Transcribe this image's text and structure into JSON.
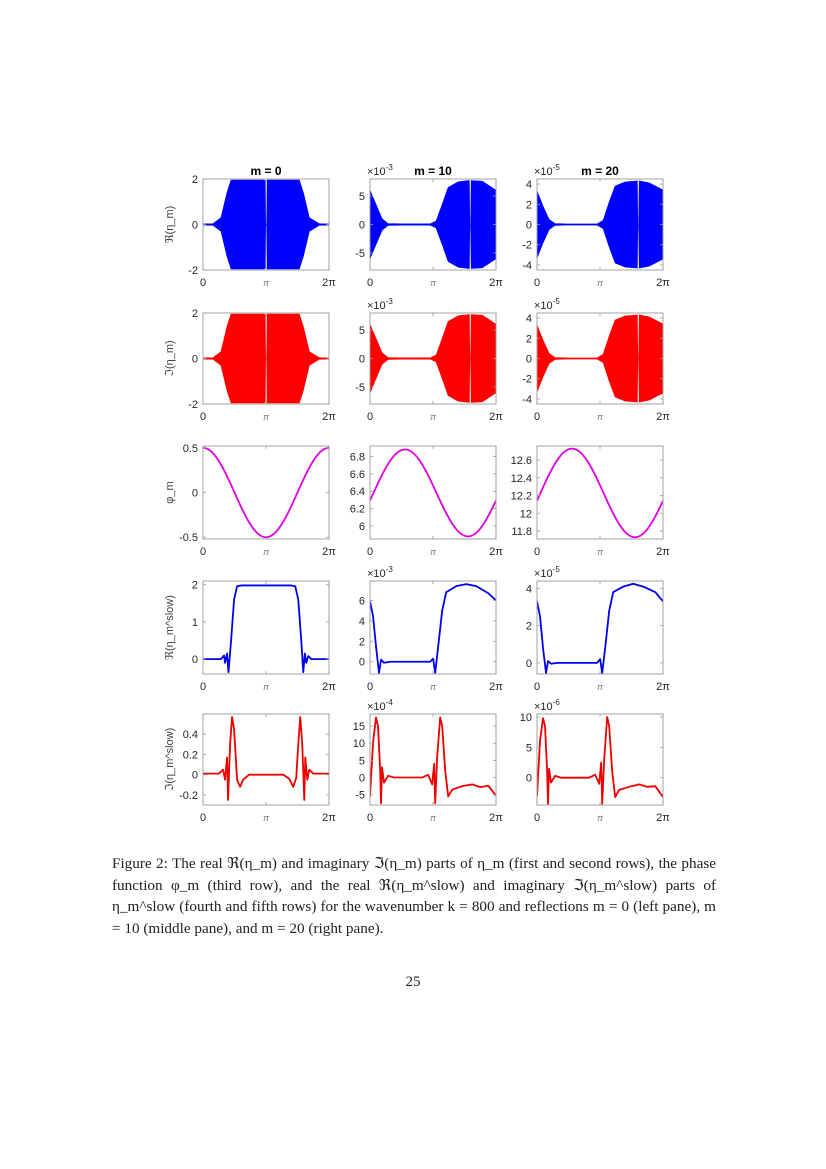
{
  "figure": {
    "column_titles": [
      "m = 0",
      "m = 10",
      "m = 20"
    ],
    "row_ylabels": [
      "ℜ(η_m)",
      "ℑ(η_m)",
      "φ_m",
      "ℜ(η_m^slow)",
      "ℑ(η_m^slow)"
    ],
    "xtick_labels": [
      "0",
      "π",
      "2π"
    ]
  },
  "chart_data": [
    {
      "row": 1,
      "col": 1,
      "type": "area",
      "series_color": "#0000FF",
      "title": "m = 0",
      "ylabel": "ℜ(η_m)",
      "exponent": "",
      "xlim": [
        0,
        6.283
      ],
      "ylim": [
        -2,
        2
      ],
      "yticks": [
        -2,
        0,
        2
      ],
      "xticks": [
        "0",
        "π",
        "2π"
      ],
      "kind": "envelope",
      "envelope": [
        [
          0,
          0.02
        ],
        [
          0.5,
          0.03
        ],
        [
          0.9,
          0.3
        ],
        [
          1.2,
          1.4
        ],
        [
          1.4,
          1.95
        ],
        [
          3.05,
          1.95
        ],
        [
          3.1,
          1.9
        ],
        [
          3.12,
          0
        ],
        [
          3.18,
          0
        ],
        [
          3.2,
          1.95
        ],
        [
          4.8,
          1.95
        ],
        [
          5.0,
          1.4
        ],
        [
          5.3,
          0.3
        ],
        [
          5.8,
          0.03
        ],
        [
          6.283,
          0.02
        ]
      ]
    },
    {
      "row": 1,
      "col": 2,
      "type": "area",
      "series_color": "#0000FF",
      "title": "m = 10",
      "ylabel": "",
      "exponent": "×10^-3",
      "xlim": [
        0,
        6.283
      ],
      "ylim": [
        -8,
        8
      ],
      "yticks": [
        -5,
        0,
        5
      ],
      "xticks": [
        "0",
        "π",
        "2π"
      ],
      "kind": "envelope",
      "envelope": [
        [
          0,
          6
        ],
        [
          0.3,
          3.5
        ],
        [
          0.6,
          1
        ],
        [
          0.9,
          0.15
        ],
        [
          1.5,
          0.1
        ],
        [
          3.0,
          0.1
        ],
        [
          3.3,
          0.6
        ],
        [
          3.6,
          3.5
        ],
        [
          3.9,
          6.5
        ],
        [
          4.4,
          7.5
        ],
        [
          4.9,
          7.7
        ],
        [
          4.95,
          7.7
        ],
        [
          4.97,
          0
        ],
        [
          5.02,
          0
        ],
        [
          5.05,
          7.7
        ],
        [
          5.6,
          7.6
        ],
        [
          6.283,
          6
        ]
      ]
    },
    {
      "row": 1,
      "col": 3,
      "type": "area",
      "series_color": "#0000FF",
      "title": "m = 20",
      "ylabel": "",
      "exponent": "×10^-5",
      "xlim": [
        0,
        6.283
      ],
      "ylim": [
        -4.5,
        4.5
      ],
      "yticks": [
        -4,
        -2,
        0,
        2,
        4
      ],
      "xticks": [
        "0",
        "π",
        "2π"
      ],
      "kind": "envelope",
      "envelope": [
        [
          0,
          3.3
        ],
        [
          0.3,
          1.8
        ],
        [
          0.6,
          0.5
        ],
        [
          0.9,
          0.08
        ],
        [
          1.5,
          0.05
        ],
        [
          3.0,
          0.05
        ],
        [
          3.3,
          0.4
        ],
        [
          3.6,
          2.2
        ],
        [
          3.9,
          3.8
        ],
        [
          4.4,
          4.2
        ],
        [
          5.0,
          4.3
        ],
        [
          5.02,
          0
        ],
        [
          5.07,
          0
        ],
        [
          5.1,
          4.3
        ],
        [
          5.6,
          4.1
        ],
        [
          6.283,
          3.4
        ]
      ]
    },
    {
      "row": 2,
      "col": 1,
      "type": "area",
      "series_color": "#FF0000",
      "title": "",
      "ylabel": "ℑ(η_m)",
      "exponent": "",
      "xlim": [
        0,
        6.283
      ],
      "ylim": [
        -2,
        2
      ],
      "yticks": [
        -2,
        0,
        2
      ],
      "xticks": [
        "0",
        "π",
        "2π"
      ],
      "kind": "envelope",
      "envelope": [
        [
          0,
          0.02
        ],
        [
          0.5,
          0.03
        ],
        [
          0.9,
          0.3
        ],
        [
          1.2,
          1.4
        ],
        [
          1.4,
          1.95
        ],
        [
          3.05,
          1.95
        ],
        [
          3.1,
          1.9
        ],
        [
          3.12,
          0
        ],
        [
          3.18,
          0
        ],
        [
          3.2,
          1.95
        ],
        [
          4.8,
          1.95
        ],
        [
          5.0,
          1.4
        ],
        [
          5.3,
          0.3
        ],
        [
          5.8,
          0.03
        ],
        [
          6.283,
          0.02
        ]
      ]
    },
    {
      "row": 2,
      "col": 2,
      "type": "area",
      "series_color": "#FF0000",
      "title": "",
      "ylabel": "",
      "exponent": "×10^-3",
      "xlim": [
        0,
        6.283
      ],
      "ylim": [
        -8,
        8
      ],
      "yticks": [
        -5,
        0,
        5
      ],
      "xticks": [
        "0",
        "π",
        "2π"
      ],
      "kind": "envelope",
      "envelope": [
        [
          0,
          6
        ],
        [
          0.3,
          3.5
        ],
        [
          0.6,
          1
        ],
        [
          0.9,
          0.15
        ],
        [
          1.5,
          0.1
        ],
        [
          3.0,
          0.1
        ],
        [
          3.3,
          0.6
        ],
        [
          3.6,
          3.5
        ],
        [
          3.9,
          6.5
        ],
        [
          4.4,
          7.5
        ],
        [
          4.95,
          7.7
        ],
        [
          4.97,
          0
        ],
        [
          5.02,
          0
        ],
        [
          5.05,
          7.7
        ],
        [
          5.6,
          7.6
        ],
        [
          6.283,
          6
        ]
      ]
    },
    {
      "row": 2,
      "col": 3,
      "type": "area",
      "series_color": "#FF0000",
      "title": "",
      "ylabel": "",
      "exponent": "×10^-5",
      "xlim": [
        0,
        6.283
      ],
      "ylim": [
        -4.5,
        4.5
      ],
      "yticks": [
        -4,
        -2,
        0,
        2,
        4
      ],
      "xticks": [
        "0",
        "π",
        "2π"
      ],
      "kind": "envelope",
      "envelope": [
        [
          0,
          3.3
        ],
        [
          0.3,
          1.8
        ],
        [
          0.6,
          0.5
        ],
        [
          0.9,
          0.08
        ],
        [
          1.5,
          0.05
        ],
        [
          3.0,
          0.05
        ],
        [
          3.3,
          0.4
        ],
        [
          3.6,
          2.2
        ],
        [
          3.9,
          3.8
        ],
        [
          4.4,
          4.2
        ],
        [
          5.0,
          4.3
        ],
        [
          5.02,
          0
        ],
        [
          5.07,
          0
        ],
        [
          5.1,
          4.3
        ],
        [
          5.6,
          4.1
        ],
        [
          6.283,
          3.4
        ]
      ]
    },
    {
      "row": 3,
      "col": 1,
      "type": "line",
      "series_color": "#E000E0",
      "title": "",
      "ylabel": "φ_m",
      "exponent": "",
      "xlim": [
        0,
        6.283
      ],
      "ylim": [
        -0.52,
        0.52
      ],
      "yticks": [
        -0.5,
        0,
        0.5
      ],
      "xticks": [
        "0",
        "π",
        "2π"
      ],
      "kind": "sine",
      "sine": {
        "offset": 0,
        "amp": 0.5,
        "phase_deg": 90
      }
    },
    {
      "row": 3,
      "col": 2,
      "type": "line",
      "series_color": "#E000E0",
      "title": "",
      "ylabel": "",
      "exponent": "",
      "xlim": [
        0,
        6.283
      ],
      "ylim": [
        5.85,
        6.92
      ],
      "yticks": [
        6,
        6.2,
        6.4,
        6.6,
        6.8
      ],
      "xticks": [
        "0",
        "π",
        "2π"
      ],
      "kind": "sine",
      "sine": {
        "offset": 6.38,
        "amp": 0.5,
        "phase_deg": -10
      }
    },
    {
      "row": 3,
      "col": 3,
      "type": "line",
      "series_color": "#E000E0",
      "title": "",
      "ylabel": "",
      "exponent": "",
      "xlim": [
        0,
        6.283
      ],
      "ylim": [
        11.71,
        12.76
      ],
      "yticks": [
        11.8,
        12,
        12.2,
        12.4,
        12.6
      ],
      "xticks": [
        "0",
        "π",
        "2π"
      ],
      "kind": "sine",
      "sine": {
        "offset": 12.23,
        "amp": 0.5,
        "phase_deg": -10
      }
    },
    {
      "row": 4,
      "col": 1,
      "type": "line",
      "series_color": "#0000EE",
      "title": "",
      "ylabel": "ℜ(η_m^slow)",
      "exponent": "",
      "xlim": [
        0,
        6.283
      ],
      "ylim": [
        -0.4,
        2.1
      ],
      "yticks": [
        0,
        1,
        2
      ],
      "xticks": [
        "0",
        "π",
        "2π"
      ],
      "kind": "line",
      "points": [
        [
          0,
          0
        ],
        [
          0.9,
          0
        ],
        [
          1.05,
          0.1
        ],
        [
          1.1,
          -0.1
        ],
        [
          1.2,
          0.15
        ],
        [
          1.27,
          -0.35
        ],
        [
          1.4,
          0.5
        ],
        [
          1.55,
          1.6
        ],
        [
          1.7,
          1.96
        ],
        [
          1.9,
          1.98
        ],
        [
          4.4,
          1.98
        ],
        [
          4.6,
          1.96
        ],
        [
          4.75,
          1.6
        ],
        [
          4.9,
          0.5
        ],
        [
          5.0,
          -0.35
        ],
        [
          5.08,
          0.15
        ],
        [
          5.15,
          -0.1
        ],
        [
          5.25,
          0.08
        ],
        [
          5.4,
          0
        ],
        [
          6.283,
          0
        ]
      ]
    },
    {
      "row": 4,
      "col": 2,
      "type": "line",
      "series_color": "#0000EE",
      "title": "",
      "ylabel": "",
      "exponent": "×10^-3",
      "xlim": [
        0,
        6.283
      ],
      "ylim": [
        -1.2,
        7.9
      ],
      "yticks": [
        0,
        2,
        4,
        6
      ],
      "xticks": [
        "0",
        "π",
        "2π"
      ],
      "kind": "line",
      "points": [
        [
          0,
          5.9
        ],
        [
          0.15,
          4.5
        ],
        [
          0.3,
          1.5
        ],
        [
          0.45,
          -1.1
        ],
        [
          0.55,
          0.2
        ],
        [
          0.7,
          -0.1
        ],
        [
          1.0,
          0
        ],
        [
          3.0,
          0
        ],
        [
          3.15,
          0.3
        ],
        [
          3.25,
          -1.1
        ],
        [
          3.4,
          1.5
        ],
        [
          3.6,
          5
        ],
        [
          3.8,
          6.8
        ],
        [
          4.3,
          7.4
        ],
        [
          4.8,
          7.6
        ],
        [
          5.3,
          7.4
        ],
        [
          5.9,
          6.7
        ],
        [
          6.283,
          6
        ]
      ]
    },
    {
      "row": 4,
      "col": 3,
      "type": "line",
      "series_color": "#0000EE",
      "title": "",
      "ylabel": "",
      "exponent": "×10^-5",
      "xlim": [
        0,
        6.283
      ],
      "ylim": [
        -0.6,
        4.4
      ],
      "yticks": [
        0,
        2,
        4
      ],
      "xticks": [
        "0",
        "π",
        "2π"
      ],
      "kind": "line",
      "points": [
        [
          0,
          3.3
        ],
        [
          0.15,
          2.5
        ],
        [
          0.3,
          0.8
        ],
        [
          0.45,
          -0.55
        ],
        [
          0.55,
          0.1
        ],
        [
          0.7,
          -0.05
        ],
        [
          1.0,
          0
        ],
        [
          3.0,
          0
        ],
        [
          3.15,
          0.2
        ],
        [
          3.25,
          -0.55
        ],
        [
          3.4,
          0.8
        ],
        [
          3.6,
          2.8
        ],
        [
          3.8,
          3.8
        ],
        [
          4.3,
          4.1
        ],
        [
          4.8,
          4.25
        ],
        [
          5.3,
          4.1
        ],
        [
          5.9,
          3.8
        ],
        [
          6.283,
          3.3
        ]
      ]
    },
    {
      "row": 5,
      "col": 1,
      "type": "line",
      "series_color": "#EE0000",
      "title": "",
      "ylabel": "ℑ(η_m^slow)",
      "exponent": "",
      "xlim": [
        0,
        6.283
      ],
      "ylim": [
        -0.3,
        0.6
      ],
      "yticks": [
        -0.2,
        0,
        0.2,
        0.4
      ],
      "xticks": [
        "0",
        "π",
        "2π"
      ],
      "kind": "line",
      "points": [
        [
          0,
          0.01
        ],
        [
          0.8,
          0.01
        ],
        [
          1.0,
          0.05
        ],
        [
          1.1,
          -0.05
        ],
        [
          1.2,
          0.17
        ],
        [
          1.25,
          -0.25
        ],
        [
          1.35,
          0.3
        ],
        [
          1.45,
          0.57
        ],
        [
          1.55,
          0.45
        ],
        [
          1.7,
          -0.05
        ],
        [
          1.85,
          -0.12
        ],
        [
          2.0,
          -0.05
        ],
        [
          2.3,
          0
        ],
        [
          4.0,
          0
        ],
        [
          4.3,
          -0.04
        ],
        [
          4.5,
          -0.12
        ],
        [
          4.65,
          -0.03
        ],
        [
          4.75,
          0.3
        ],
        [
          4.85,
          0.57
        ],
        [
          4.95,
          0.3
        ],
        [
          5.05,
          -0.25
        ],
        [
          5.1,
          0.17
        ],
        [
          5.2,
          -0.05
        ],
        [
          5.3,
          0.05
        ],
        [
          5.5,
          0.01
        ],
        [
          6.283,
          0.01
        ]
      ]
    },
    {
      "row": 5,
      "col": 2,
      "type": "line",
      "series_color": "#EE0000",
      "title": "",
      "ylabel": "",
      "exponent": "×10^-4",
      "xlim": [
        0,
        6.283
      ],
      "ylim": [
        -8,
        18.5
      ],
      "yticks": [
        -5,
        0,
        5,
        10,
        15
      ],
      "xticks": [
        "0",
        "π",
        "2π"
      ],
      "kind": "line",
      "points": [
        [
          0,
          -5.5
        ],
        [
          0.15,
          10
        ],
        [
          0.3,
          17.5
        ],
        [
          0.4,
          15
        ],
        [
          0.5,
          3
        ],
        [
          0.55,
          -7.5
        ],
        [
          0.6,
          3
        ],
        [
          0.7,
          -1.5
        ],
        [
          0.9,
          0.5
        ],
        [
          1.2,
          0
        ],
        [
          2.6,
          0
        ],
        [
          2.9,
          0.8
        ],
        [
          3.1,
          -2
        ],
        [
          3.2,
          4
        ],
        [
          3.25,
          -7.5
        ],
        [
          3.35,
          6
        ],
        [
          3.5,
          17.5
        ],
        [
          3.6,
          15
        ],
        [
          3.75,
          2
        ],
        [
          3.9,
          -5.5
        ],
        [
          4.1,
          -3.5
        ],
        [
          4.6,
          -2.5
        ],
        [
          5.1,
          -2
        ],
        [
          5.5,
          -2.8
        ],
        [
          5.9,
          -2.4
        ],
        [
          6.283,
          -5.3
        ]
      ]
    },
    {
      "row": 5,
      "col": 3,
      "type": "line",
      "series_color": "#EE0000",
      "title": "",
      "ylabel": "",
      "exponent": "×10^-6",
      "xlim": [
        0,
        6.283
      ],
      "ylim": [
        -4.5,
        10.5
      ],
      "yticks": [
        0,
        5,
        10
      ],
      "xticks": [
        "0",
        "π",
        "2π"
      ],
      "kind": "line",
      "points": [
        [
          0,
          -3
        ],
        [
          0.15,
          6
        ],
        [
          0.3,
          9.8
        ],
        [
          0.4,
          8.5
        ],
        [
          0.5,
          1.5
        ],
        [
          0.55,
          -4.3
        ],
        [
          0.6,
          1.5
        ],
        [
          0.7,
          -0.8
        ],
        [
          0.9,
          0.3
        ],
        [
          1.2,
          0
        ],
        [
          2.6,
          0
        ],
        [
          2.9,
          0.5
        ],
        [
          3.1,
          -1
        ],
        [
          3.2,
          2.5
        ],
        [
          3.25,
          -4.3
        ],
        [
          3.35,
          3
        ],
        [
          3.5,
          10
        ],
        [
          3.6,
          8.5
        ],
        [
          3.75,
          1
        ],
        [
          3.9,
          -3.2
        ],
        [
          4.1,
          -2
        ],
        [
          4.6,
          -1.5
        ],
        [
          5.1,
          -1.1
        ],
        [
          5.5,
          -1.5
        ],
        [
          5.9,
          -1.4
        ],
        [
          6.283,
          -3.2
        ]
      ]
    }
  ],
  "caption": {
    "label": "Figure 2:",
    "text": "The real ℜ(η_m) and imaginary ℑ(η_m) parts of η_m (first and second rows), the phase function φ_m (third row), and the real ℜ(η_m^slow) and imaginary ℑ(η_m^slow) parts of η_m^slow (fourth and fifth rows) for the wavenumber k = 800 and reflections m = 0 (left pane), m = 10 (middle pane), and m = 20 (right pane)."
  },
  "page_number": "25"
}
